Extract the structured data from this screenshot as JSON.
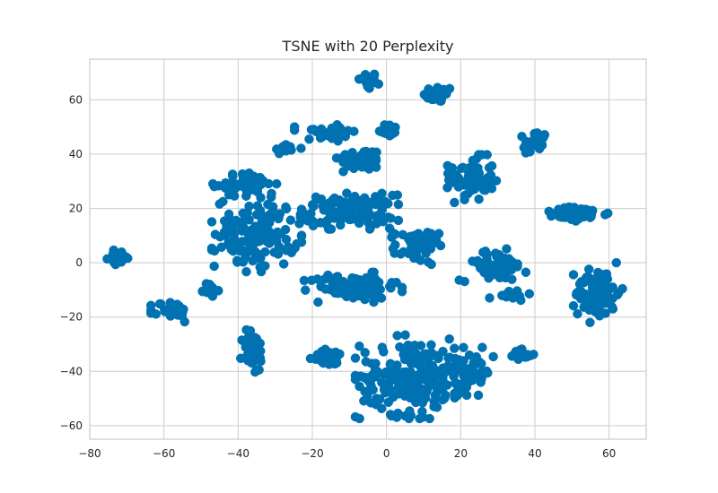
{
  "chart_data": {
    "type": "scatter",
    "title": "TSNE with 20 Perplexity",
    "xlabel": "",
    "ylabel": "",
    "xlim": [
      -80,
      70
    ],
    "ylim": [
      -65,
      75
    ],
    "xticks": [
      -80,
      -60,
      -40,
      -20,
      0,
      20,
      40,
      60
    ],
    "yticks": [
      -60,
      -40,
      -20,
      0,
      20,
      40,
      60
    ],
    "grid": true,
    "background": "#ffffff",
    "marker_color": "#0072b2",
    "clusters": [
      {
        "cx": -5,
        "cy": 67,
        "sx": 1.3,
        "sy": 1.6,
        "n": 30
      },
      {
        "cx": 14,
        "cy": 62,
        "sx": 2.0,
        "sy": 1.5,
        "n": 30
      },
      {
        "cx": 0.5,
        "cy": 49,
        "sx": 1.3,
        "sy": 1.3,
        "n": 20
      },
      {
        "cx": -16,
        "cy": 48,
        "sx": 4.0,
        "sy": 1.8,
        "n": 30
      },
      {
        "cx": -27,
        "cy": 42,
        "sx": 1.8,
        "sy": 1.0,
        "n": 15
      },
      {
        "cx": -7,
        "cy": 38,
        "sx": 3.0,
        "sy": 2.0,
        "n": 60
      },
      {
        "cx": 40,
        "cy": 44,
        "sx": 1.6,
        "sy": 2.5,
        "n": 30
      },
      {
        "cx": 23,
        "cy": 31,
        "sx": 3.0,
        "sy": 4.0,
        "n": 70
      },
      {
        "cx": -38,
        "cy": 29,
        "sx": 4.0,
        "sy": 2.0,
        "n": 50
      },
      {
        "cx": -10,
        "cy": 19,
        "sx": 6.0,
        "sy": 3.0,
        "n": 120
      },
      {
        "cx": 51,
        "cy": 18,
        "sx": 4.5,
        "sy": 1.2,
        "n": 60
      },
      {
        "cx": -35,
        "cy": 11,
        "sx": 5.5,
        "sy": 6.5,
        "n": 130
      },
      {
        "cx": 8,
        "cy": 6,
        "sx": 3.0,
        "sy": 3.0,
        "n": 50
      },
      {
        "cx": 29,
        "cy": -1,
        "sx": 4.5,
        "sy": 2.8,
        "n": 60
      },
      {
        "cx": -72,
        "cy": 2,
        "sx": 1.5,
        "sy": 1.2,
        "n": 25
      },
      {
        "cx": -9,
        "cy": -9,
        "sx": 6.0,
        "sy": 2.5,
        "n": 80
      },
      {
        "cx": 33,
        "cy": -12,
        "sx": 2.5,
        "sy": 0.9,
        "n": 15
      },
      {
        "cx": 57,
        "cy": -11,
        "sx": 3.0,
        "sy": 5.0,
        "n": 80
      },
      {
        "cx": -48,
        "cy": -10,
        "sx": 1.2,
        "sy": 1.3,
        "n": 15
      },
      {
        "cx": -58,
        "cy": -18,
        "sx": 2.5,
        "sy": 2.0,
        "n": 30
      },
      {
        "cx": -36,
        "cy": -33,
        "sx": 1.5,
        "sy": 4.0,
        "n": 45
      },
      {
        "cx": -15,
        "cy": -35,
        "sx": 2.5,
        "sy": 1.5,
        "n": 30
      },
      {
        "cx": 7,
        "cy": -42,
        "sx": 7.0,
        "sy": 7.0,
        "n": 200
      },
      {
        "cx": 22,
        "cy": -40,
        "sx": 3.5,
        "sy": 4.0,
        "n": 50
      },
      {
        "cx": 36,
        "cy": -34,
        "sx": 2.0,
        "sy": 1.0,
        "n": 15
      }
    ],
    "outliers": [
      [
        -31,
        25.5
      ],
      [
        -32,
        21.5
      ],
      [
        -20,
        15.5
      ],
      [
        -29,
        6
      ]
    ]
  }
}
